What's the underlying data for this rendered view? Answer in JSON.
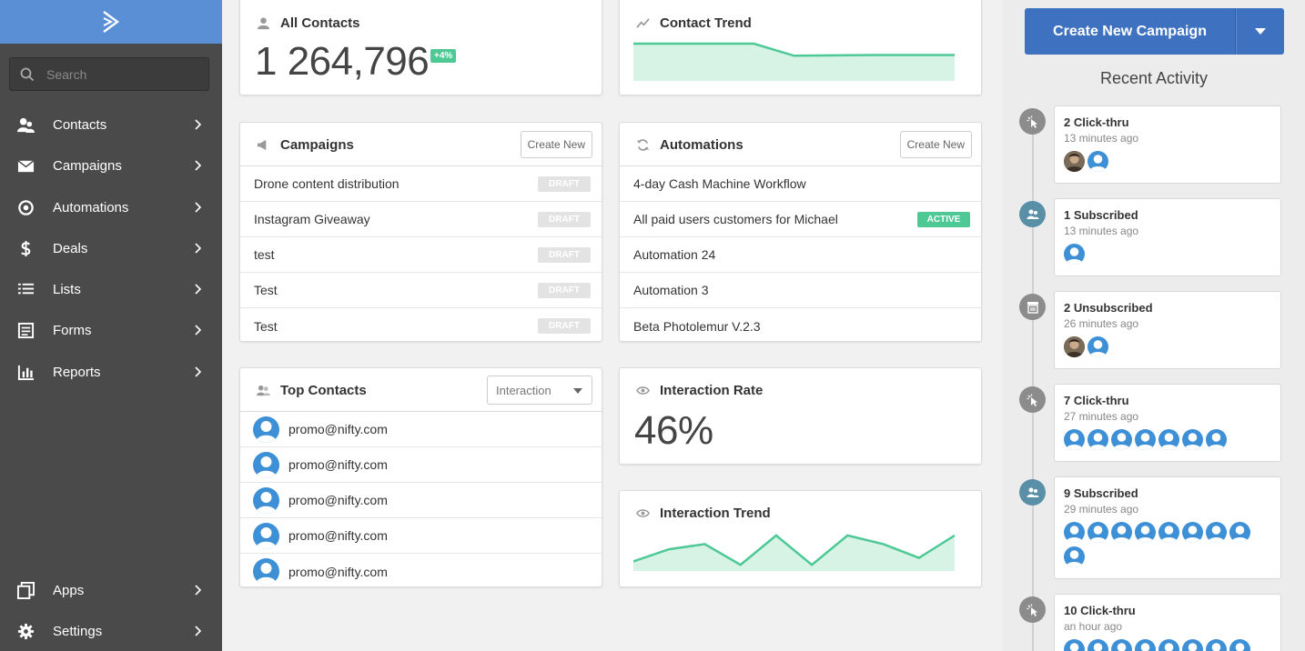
{
  "sidebar": {
    "search_placeholder": "Search",
    "items": [
      {
        "label": "Contacts",
        "icon": "contacts-icon"
      },
      {
        "label": "Campaigns",
        "icon": "envelope-icon"
      },
      {
        "label": "Automations",
        "icon": "automations-icon"
      },
      {
        "label": "Deals",
        "icon": "dollar-icon"
      },
      {
        "label": "Lists",
        "icon": "list-icon"
      },
      {
        "label": "Forms",
        "icon": "form-icon"
      },
      {
        "label": "Reports",
        "icon": "bar-chart-icon"
      },
      {
        "label": "Apps",
        "icon": "apps-icon"
      },
      {
        "label": "Settings",
        "icon": "gear-icon"
      }
    ]
  },
  "all_contacts": {
    "title": "All Contacts",
    "value": "1 264,796",
    "badge": "+4%"
  },
  "contact_trend": {
    "title": "Contact Trend",
    "points": [
      1.0,
      1.0,
      1.0,
      1.0,
      0.65,
      0.66,
      0.67,
      0.67,
      0.67
    ]
  },
  "campaigns": {
    "title": "Campaigns",
    "create_label": "Create New",
    "rows": [
      {
        "name": "Drone content distribution",
        "status": "DRAFT"
      },
      {
        "name": "Instagram Giveaway",
        "status": "DRAFT"
      },
      {
        "name": "test",
        "status": "DRAFT"
      },
      {
        "name": "Test",
        "status": "DRAFT"
      },
      {
        "name": "Test",
        "status": "DRAFT"
      }
    ]
  },
  "automations": {
    "title": "Automations",
    "create_label": "Create New",
    "rows": [
      {
        "name": "4-day Cash Machine Workflow",
        "status": ""
      },
      {
        "name": "All paid users customers for Michael",
        "status": "ACTIVE"
      },
      {
        "name": "Automation 24",
        "status": ""
      },
      {
        "name": "Automation 3",
        "status": ""
      },
      {
        "name": "Beta Photolemur V.2.3",
        "status": ""
      }
    ]
  },
  "top_contacts": {
    "title": "Top Contacts",
    "select_value": "Interaction",
    "rows": [
      "promo@nifty.com",
      "promo@nifty.com",
      "promo@nifty.com",
      "promo@nifty.com",
      "promo@nifty.com"
    ]
  },
  "interaction_rate": {
    "title": "Interaction Rate",
    "value": "46%"
  },
  "interaction_trend": {
    "title": "Interaction Trend",
    "points": [
      0.2,
      0.55,
      0.7,
      0.1,
      0.95,
      0.1,
      0.95,
      0.7,
      0.3,
      0.95
    ]
  },
  "right_panel": {
    "cta_label": "Create New Campaign",
    "recent_title": "Recent Activity",
    "activities": [
      {
        "title": "2 Click-thru",
        "time": "13 minutes ago",
        "icon": "click-icon",
        "photos": 1,
        "avatars": 1
      },
      {
        "title": "1 Subscribed",
        "time": "13 minutes ago",
        "icon": "subscribe-icon",
        "photos": 0,
        "avatars": 1
      },
      {
        "title": "2 Unsubscribed",
        "time": "26 minutes ago",
        "icon": "unsubscribe-icon",
        "photos": 1,
        "avatars": 1
      },
      {
        "title": "7 Click-thru",
        "time": "27 minutes ago",
        "icon": "click-icon",
        "photos": 0,
        "avatars": 7
      },
      {
        "title": "9 Subscribed",
        "time": "29 minutes ago",
        "icon": "subscribe-icon",
        "photos": 0,
        "avatars": 9
      },
      {
        "title": "10 Click-thru",
        "time": "an hour ago",
        "icon": "click-icon",
        "photos": 0,
        "avatars": 8
      }
    ]
  },
  "colors": {
    "sidebar": "#4a4a4a",
    "logo_bar": "#5a8fd6",
    "accent_green": "#4ec995",
    "cta_blue": "#3e72c0",
    "avatar_blue": "#3d8fd6"
  }
}
